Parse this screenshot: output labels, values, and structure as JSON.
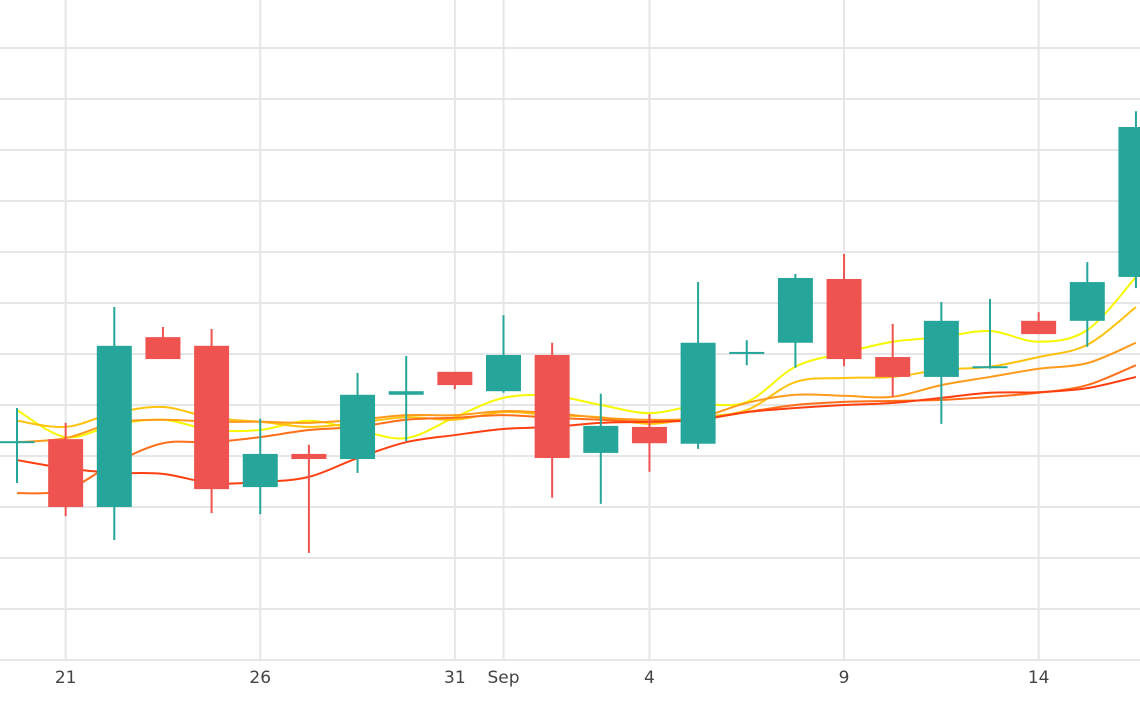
{
  "chart_data": {
    "type": "candlestick",
    "title": "",
    "xlabel": "",
    "ylabel": "",
    "ylim": [
      0,
      12.94
    ],
    "grid": true,
    "x_ticks": [
      {
        "index": 1,
        "label": "21"
      },
      {
        "index": 5,
        "label": "26"
      },
      {
        "index": 9,
        "label": "31"
      },
      {
        "index": 10,
        "label": "Sep"
      },
      {
        "index": 13,
        "label": "4"
      },
      {
        "index": 17,
        "label": "9"
      },
      {
        "index": 21,
        "label": "14"
      }
    ],
    "colors": {
      "increasing": "#26a69a",
      "decreasing": "#ef5350",
      "grid": "#e6e6e6"
    },
    "candles": [
      {
        "o": 4.27,
        "h": 4.94,
        "l": 3.47,
        "c": 4.29
      },
      {
        "o": 4.33,
        "h": 4.65,
        "l": 2.82,
        "c": 3.0
      },
      {
        "o": 3.0,
        "h": 6.92,
        "l": 2.35,
        "c": 6.16
      },
      {
        "o": 6.33,
        "h": 6.53,
        "l": 5.9,
        "c": 5.9
      },
      {
        "o": 6.16,
        "h": 6.49,
        "l": 2.88,
        "c": 3.35
      },
      {
        "o": 3.39,
        "h": 4.73,
        "l": 2.86,
        "c": 4.04
      },
      {
        "o": 4.04,
        "h": 4.22,
        "l": 2.1,
        "c": 3.94
      },
      {
        "o": 3.94,
        "h": 5.63,
        "l": 3.67,
        "c": 5.2
      },
      {
        "o": 5.2,
        "h": 5.96,
        "l": 4.29,
        "c": 5.27
      },
      {
        "o": 5.65,
        "h": 5.65,
        "l": 5.31,
        "c": 5.39
      },
      {
        "o": 5.27,
        "h": 6.76,
        "l": 5.24,
        "c": 5.98
      },
      {
        "o": 5.98,
        "h": 6.22,
        "l": 3.18,
        "c": 3.96
      },
      {
        "o": 4.06,
        "h": 5.22,
        "l": 3.06,
        "c": 4.59
      },
      {
        "o": 4.57,
        "h": 4.82,
        "l": 3.69,
        "c": 4.25
      },
      {
        "o": 4.24,
        "h": 7.41,
        "l": 4.14,
        "c": 6.22
      },
      {
        "o": 6.02,
        "h": 6.27,
        "l": 5.78,
        "c": 6.04
      },
      {
        "o": 6.22,
        "h": 7.57,
        "l": 5.73,
        "c": 7.49
      },
      {
        "o": 7.47,
        "h": 7.96,
        "l": 5.76,
        "c": 5.9
      },
      {
        "o": 5.94,
        "h": 6.59,
        "l": 5.16,
        "c": 5.55
      },
      {
        "o": 5.55,
        "h": 7.02,
        "l": 4.63,
        "c": 6.65
      },
      {
        "o": 5.75,
        "h": 7.08,
        "l": 5.71,
        "c": 5.76
      },
      {
        "o": 6.65,
        "h": 6.82,
        "l": 6.39,
        "c": 6.39
      },
      {
        "o": 6.65,
        "h": 7.8,
        "l": 6.14,
        "c": 7.41
      },
      {
        "o": 7.51,
        "h": 10.76,
        "l": 7.29,
        "c": 10.45
      }
    ],
    "series": [
      {
        "color": "#f7f700",
        "values": [
          4.9,
          4.37,
          4.61,
          4.71,
          4.51,
          4.51,
          4.69,
          4.51,
          4.35,
          4.76,
          5.14,
          5.18,
          5.0,
          4.84,
          5.0,
          5.06,
          5.75,
          6.02,
          6.24,
          6.33,
          6.45,
          6.24,
          6.47,
          7.51
        ]
      },
      {
        "color": "#ffc20e",
        "values": [
          4.69,
          4.57,
          4.84,
          4.96,
          4.75,
          4.67,
          4.57,
          4.65,
          4.76,
          4.71,
          4.86,
          4.8,
          4.76,
          4.63,
          4.76,
          4.9,
          5.45,
          5.53,
          5.55,
          5.69,
          5.75,
          5.94,
          6.18,
          6.92
        ]
      },
      {
        "color": "#ff9a1a",
        "values": [
          4.27,
          4.35,
          4.65,
          4.71,
          4.67,
          4.67,
          4.65,
          4.71,
          4.8,
          4.8,
          4.88,
          4.84,
          4.75,
          4.71,
          4.75,
          5.04,
          5.2,
          5.18,
          5.16,
          5.39,
          5.55,
          5.71,
          5.82,
          6.22
        ]
      },
      {
        "color": "#ff6f1a",
        "values": [
          3.27,
          3.33,
          3.86,
          4.25,
          4.27,
          4.37,
          4.51,
          4.57,
          4.71,
          4.75,
          4.8,
          4.75,
          4.71,
          4.67,
          4.71,
          4.86,
          5.0,
          5.06,
          5.08,
          5.1,
          5.16,
          5.24,
          5.39,
          5.78
        ]
      },
      {
        "color": "#ff3f0f",
        "values": [
          3.92,
          3.76,
          3.67,
          3.65,
          3.47,
          3.49,
          3.59,
          3.96,
          4.27,
          4.41,
          4.53,
          4.57,
          4.65,
          4.67,
          4.71,
          4.86,
          4.94,
          5.0,
          5.04,
          5.14,
          5.24,
          5.25,
          5.33,
          5.55
        ]
      }
    ]
  }
}
